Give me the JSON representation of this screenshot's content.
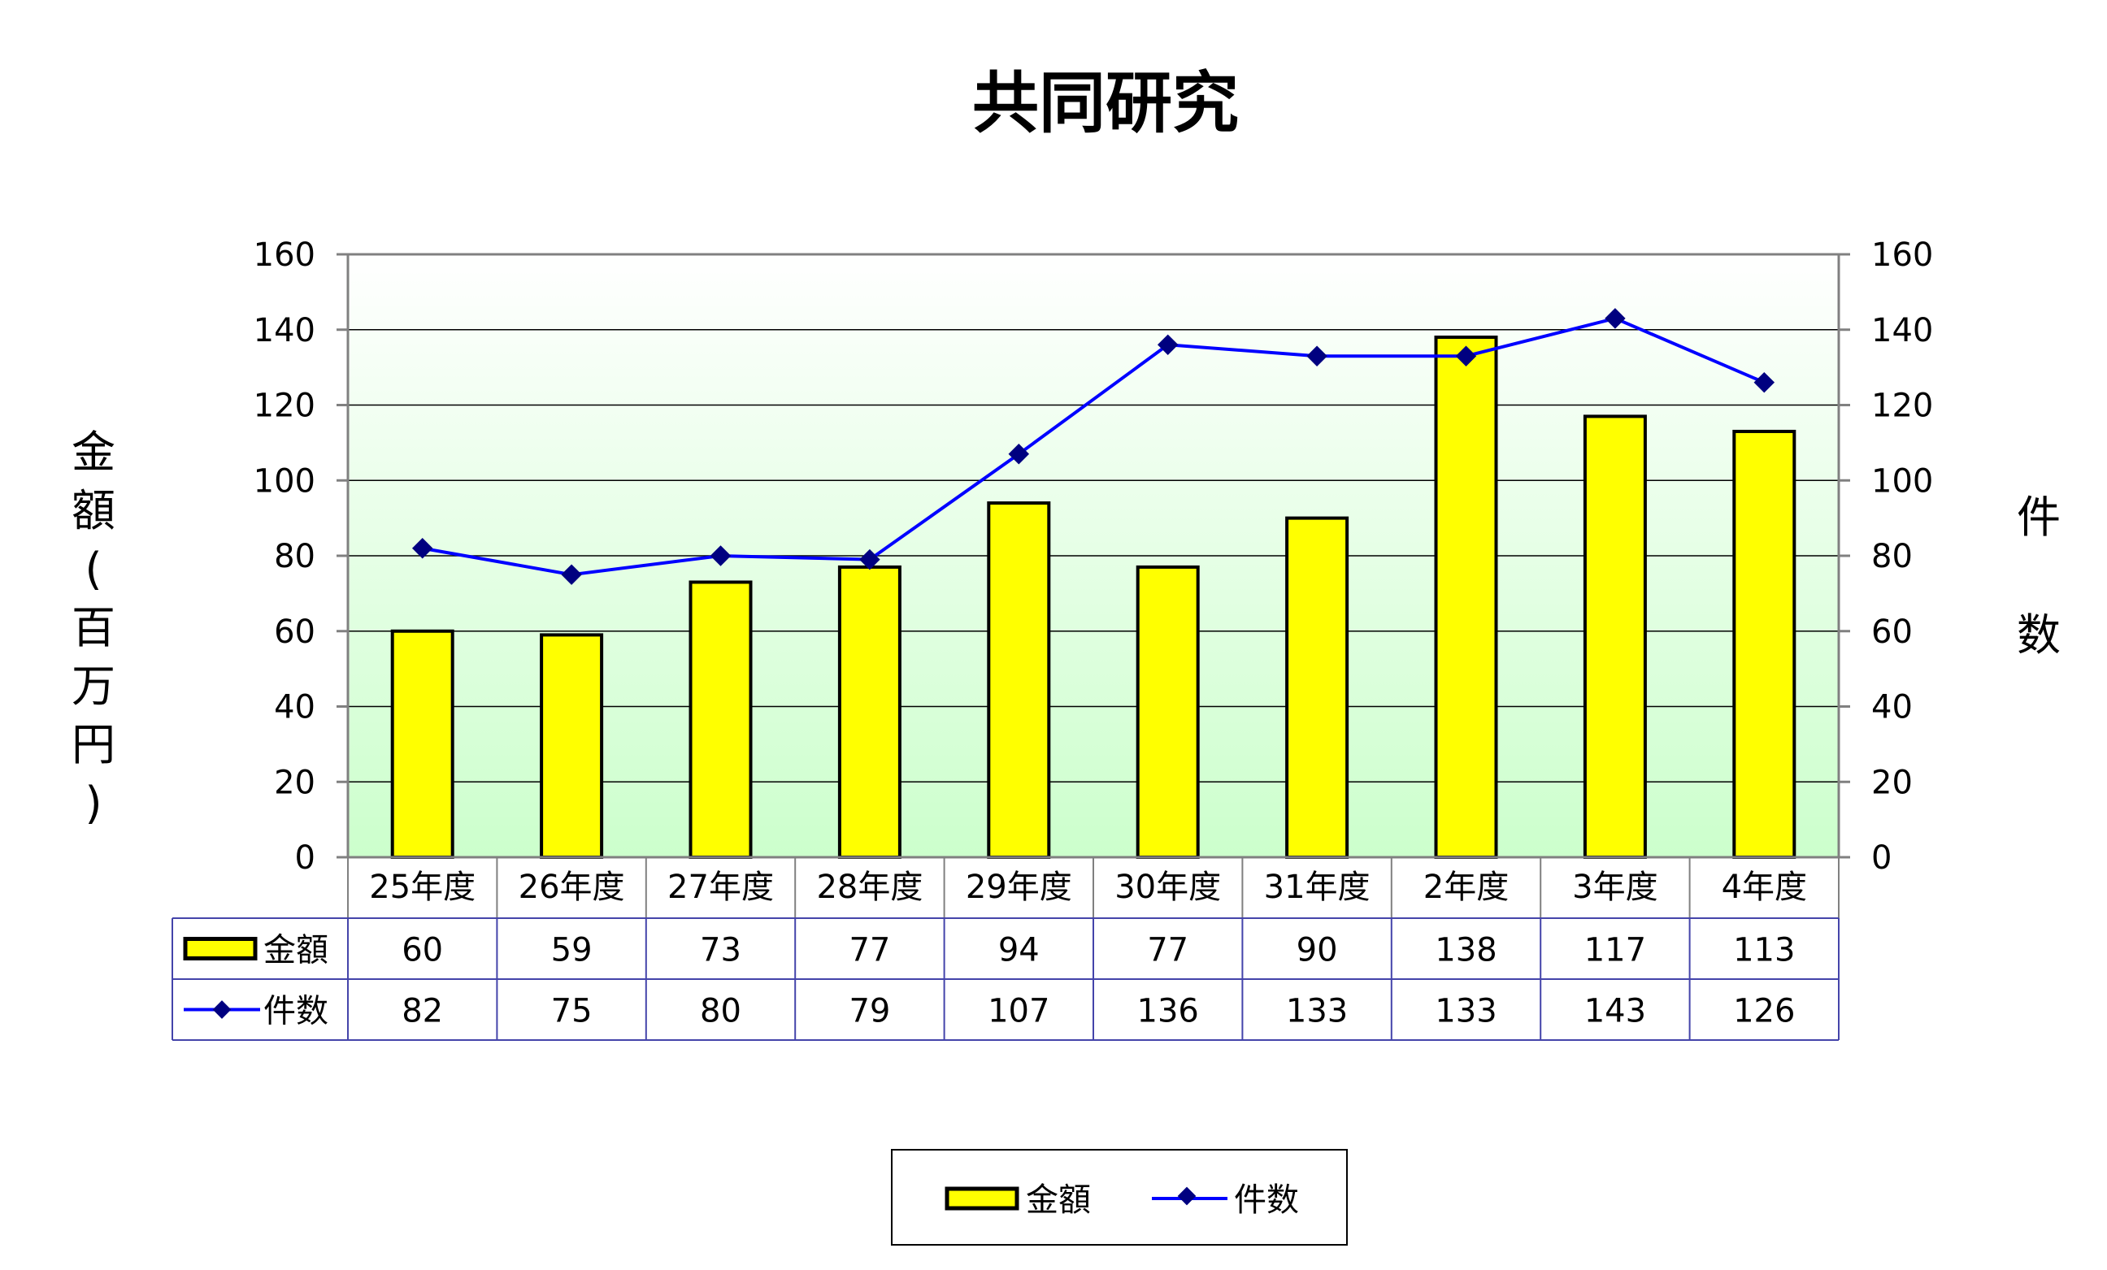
{
  "chart_data": {
    "type": "bar",
    "title": "共同研究",
    "categories": [
      "25年度",
      "26年度",
      "27年度",
      "28年度",
      "29年度",
      "30年度",
      "31年度",
      "2年度",
      "3年度",
      "4年度"
    ],
    "series": [
      {
        "name": "金額",
        "type": "bar",
        "axis": "left",
        "values": [
          60,
          59,
          73,
          77,
          94,
          77,
          90,
          138,
          117,
          113
        ]
      },
      {
        "name": "件数",
        "type": "line",
        "axis": "right",
        "values": [
          82,
          75,
          80,
          79,
          107,
          136,
          133,
          133,
          143,
          126
        ]
      }
    ],
    "ylabel": "金額(百万円)",
    "ylabel_right": "件数",
    "ylim": [
      0,
      160
    ],
    "yticks": [
      "0",
      "20",
      "40",
      "60",
      "80",
      "100",
      "120",
      "140",
      "160"
    ],
    "grid": true,
    "data_table": true,
    "legend": "bottom",
    "colors": {
      "bar_fill": "#ffff00",
      "bar_stroke": "#000000",
      "line": "#0000ff",
      "marker": "#000080",
      "plot_bg_top": "#ffffff",
      "plot_bg_bottom": "#ccffcc",
      "table_border": "#4444aa"
    }
  }
}
